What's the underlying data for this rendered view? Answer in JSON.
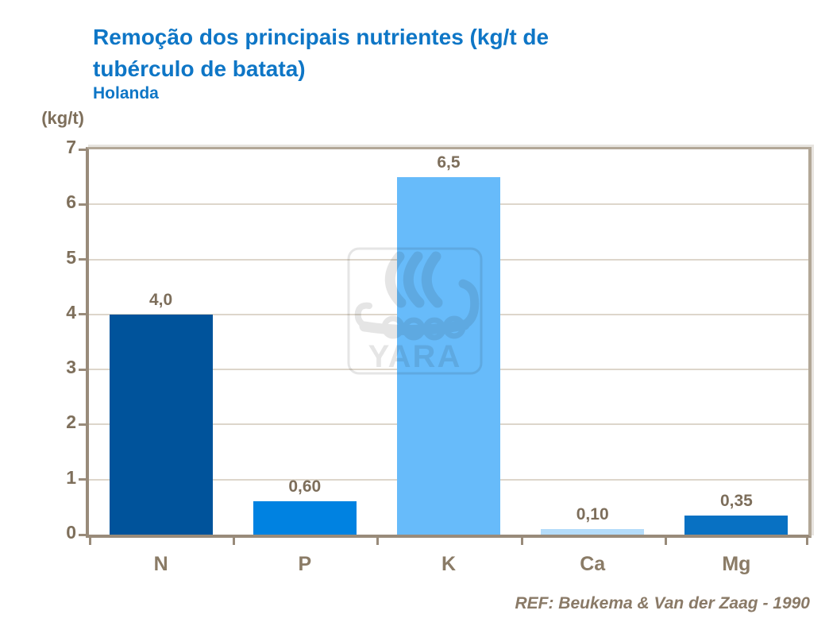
{
  "header": {
    "title_line1": "Remoção dos principais nutrientes (kg/t de",
    "title_line2": "tubérculo de batata)",
    "subtitle": "Holanda"
  },
  "y_axis_unit": "(kg/t)",
  "footer_ref": "REF: Beukema & Van der Zaag - 1990",
  "watermark": {
    "label": "YARA"
  },
  "colors": {
    "title_blue": "#0e76c6",
    "axis_text": "#7e6f5b",
    "axis_line": "#998b7a",
    "frame_light": "#b2a797",
    "gridline": "#ddd6cb"
  },
  "chart_data": {
    "type": "bar",
    "title": "Remoção dos principais nutrientes (kg/t de tubérculo de batata)",
    "subtitle": "Holanda",
    "categories": [
      "N",
      "P",
      "K",
      "Ca",
      "Mg"
    ],
    "values": [
      4.0,
      0.6,
      6.5,
      0.1,
      0.35
    ],
    "value_labels": [
      "4,0",
      "0,60",
      "6,5",
      "0,10",
      "0,35"
    ],
    "bar_colors": [
      "#00539b",
      "#0082e1",
      "#67bbfa",
      "#b4dcfa",
      "#0871c3"
    ],
    "ylabel": "(kg/t)",
    "ylim": [
      0,
      7
    ],
    "yticks": [
      0,
      1,
      2,
      3,
      4,
      5,
      6,
      7
    ],
    "grid": true,
    "legend": false,
    "annotation": "REF: Beukema & Van der Zaag - 1990"
  }
}
